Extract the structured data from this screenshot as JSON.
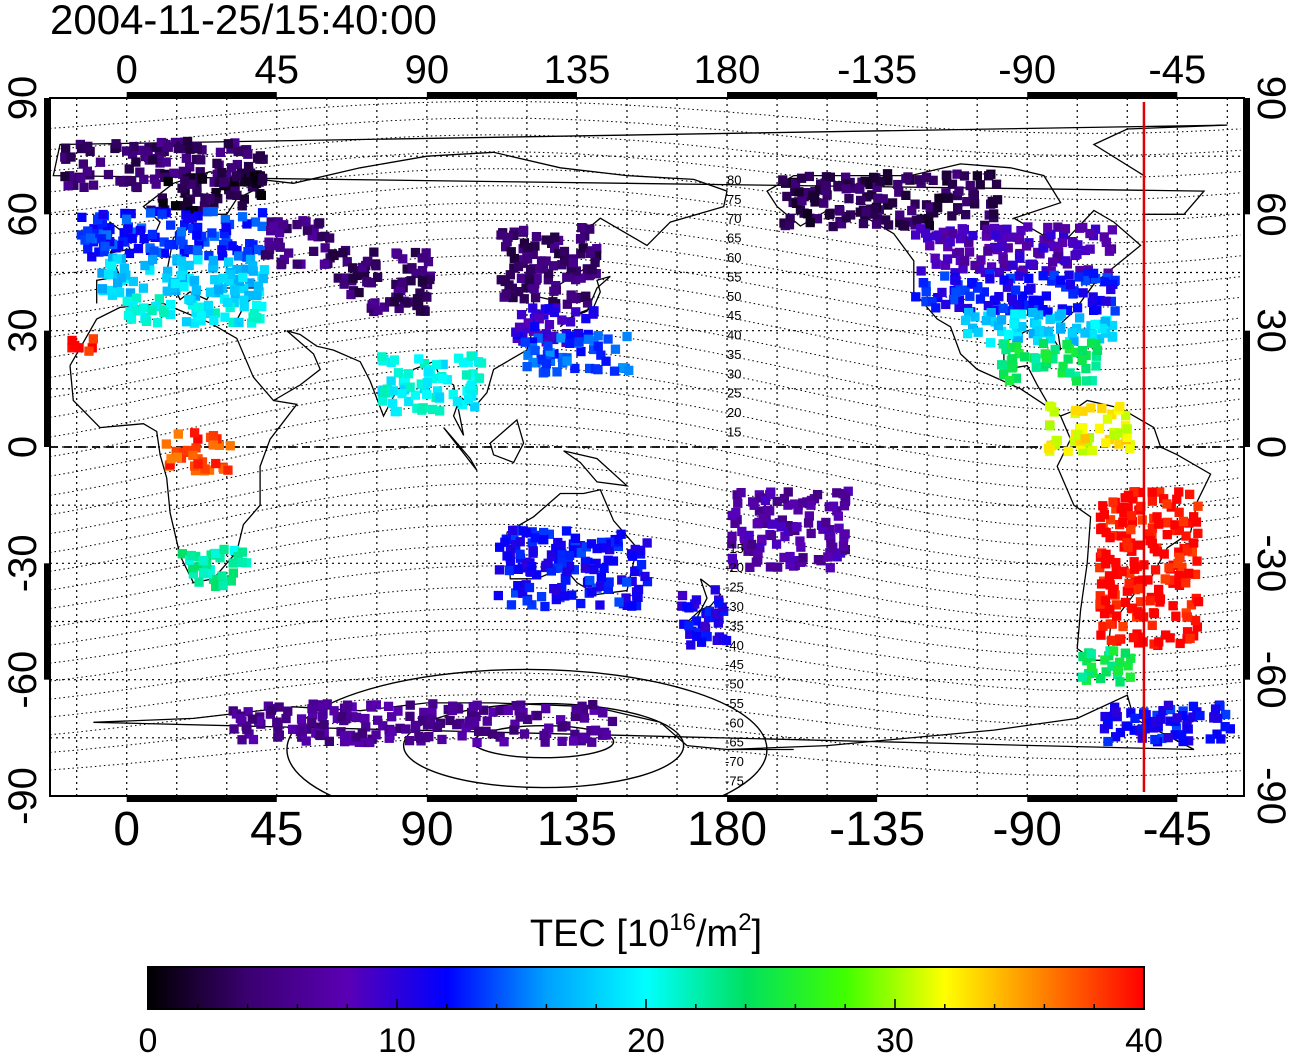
{
  "header": {
    "timestamp": "2004-11-25/15:40:00"
  },
  "map": {
    "x_ticks_top": [
      "0",
      "45",
      "90",
      "135",
      "180",
      "-135",
      "-90",
      "-45"
    ],
    "x_ticks_bottom": [
      "0",
      "45",
      "90",
      "135",
      "180",
      "-135",
      "-90",
      "-45"
    ],
    "y_ticks_left": [
      "90",
      "60",
      "30",
      "0",
      "-30",
      "-60",
      "-90"
    ],
    "y_ticks_right": [
      "90",
      "60",
      "30",
      "0",
      "-30",
      "-60",
      "-90"
    ],
    "x_tick_values": [
      0,
      45,
      90,
      135,
      180,
      225,
      270,
      315
    ],
    "y_tick_values": [
      90,
      60,
      30,
      0,
      -30,
      -60,
      -90
    ],
    "lon_range": [
      -23,
      335
    ],
    "lat_range": [
      -90,
      90
    ],
    "grid": "dotted",
    "sun_meridian_lon": 305,
    "sun_meridian_color": "#e00000",
    "magnetic_labels_north": [
      "80",
      "75",
      "70",
      "65",
      "60",
      "55",
      "50",
      "45",
      "40",
      "35",
      "30",
      "25",
      "20",
      "15"
    ],
    "magnetic_labels_south": [
      "-15",
      "-20",
      "-25",
      "-30",
      "-35",
      "-40",
      "-45",
      "-50",
      "-55",
      "-60",
      "-65",
      "-70",
      "-75"
    ]
  },
  "colorbar": {
    "title_main": "TEC  [10",
    "title_exp1": "16",
    "title_mid": "/m",
    "title_exp2": "2",
    "title_end": "]",
    "ticks": [
      "0",
      "10",
      "20",
      "30",
      "40"
    ],
    "tick_values": [
      0,
      10,
      20,
      30,
      40
    ],
    "range": [
      0,
      40
    ],
    "colors": [
      "#000000",
      "#3a0070",
      "#5a00b4",
      "#0000ff",
      "#00a0ff",
      "#00ffff",
      "#00e060",
      "#40ff00",
      "#ffff00",
      "#ff8000",
      "#ff0000"
    ]
  },
  "chart_data": {
    "type": "heatmap",
    "title": "2004-11-25/15:40:00",
    "xlabel": "",
    "ylabel": "",
    "xlim": [
      -23,
      335
    ],
    "ylim": [
      -90,
      90
    ],
    "value_label": "TEC [10^16/m^2]",
    "value_range": [
      0,
      40
    ],
    "regions": [
      {
        "lon": [
          -20,
          40
        ],
        "lat": [
          68,
          80
        ],
        "tec": 4
      },
      {
        "lon": [
          5,
          40
        ],
        "lat": [
          62,
          72
        ],
        "tec": 2
      },
      {
        "lon": [
          -15,
          40
        ],
        "lat": [
          50,
          62
        ],
        "tec": 13
      },
      {
        "lon": [
          -10,
          40
        ],
        "lat": [
          40,
          50
        ],
        "tec": 18
      },
      {
        "lon": [
          -5,
          40
        ],
        "lat": [
          33,
          40
        ],
        "tec": 20
      },
      {
        "lon": [
          40,
          60
        ],
        "lat": [
          48,
          60
        ],
        "tec": 5
      },
      {
        "lon": [
          60,
          90
        ],
        "lat": [
          36,
          52
        ],
        "tec": 4
      },
      {
        "lon": [
          110,
          140
        ],
        "lat": [
          38,
          58
        ],
        "tec": 4
      },
      {
        "lon": [
          115,
          140
        ],
        "lat": [
          28,
          38
        ],
        "tec": 10
      },
      {
        "lon": [
          118,
          150
        ],
        "lat": [
          20,
          30
        ],
        "tec": 14
      },
      {
        "lon": [
          195,
          260
        ],
        "lat": [
          58,
          72
        ],
        "tec": 3
      },
      {
        "lon": [
          235,
          295
        ],
        "lat": [
          46,
          58
        ],
        "tec": 8
      },
      {
        "lon": [
          235,
          295
        ],
        "lat": [
          36,
          46
        ],
        "tec": 12
      },
      {
        "lon": [
          250,
          295
        ],
        "lat": [
          28,
          36
        ],
        "tec": 18
      },
      {
        "lon": [
          260,
          290
        ],
        "lat": [
          18,
          28
        ],
        "tec": 24
      },
      {
        "lon": [
          275,
          300
        ],
        "lat": [
          0,
          12
        ],
        "tec": 32
      },
      {
        "lon": [
          290,
          320
        ],
        "lat": [
          -50,
          -10
        ],
        "tec": 40
      },
      {
        "lon": [
          285,
          300
        ],
        "lat": [
          -60,
          -50
        ],
        "tec": 24
      },
      {
        "lon": [
          -18,
          -10
        ],
        "lat": [
          25,
          30
        ],
        "tec": 40
      },
      {
        "lon": [
          10,
          30
        ],
        "lat": [
          -5,
          5
        ],
        "tec": 38
      },
      {
        "lon": [
          15,
          35
        ],
        "lat": [
          -35,
          -25
        ],
        "tec": 22
      },
      {
        "lon": [
          75,
          105
        ],
        "lat": [
          10,
          25
        ],
        "tec": 20
      },
      {
        "lon": [
          110,
          155
        ],
        "lat": [
          -40,
          -20
        ],
        "tec": 12
      },
      {
        "lon": [
          165,
          180
        ],
        "lat": [
          -50,
          -35
        ],
        "tec": 11
      },
      {
        "lon": [
          30,
          145
        ],
        "lat": [
          -75,
          -65
        ],
        "tec": 6
      },
      {
        "lon": [
          180,
          215
        ],
        "lat": [
          -30,
          -10
        ],
        "tec": 7
      },
      {
        "lon": [
          290,
          330
        ],
        "lat": [
          -75,
          -65
        ],
        "tec": 12
      }
    ]
  }
}
